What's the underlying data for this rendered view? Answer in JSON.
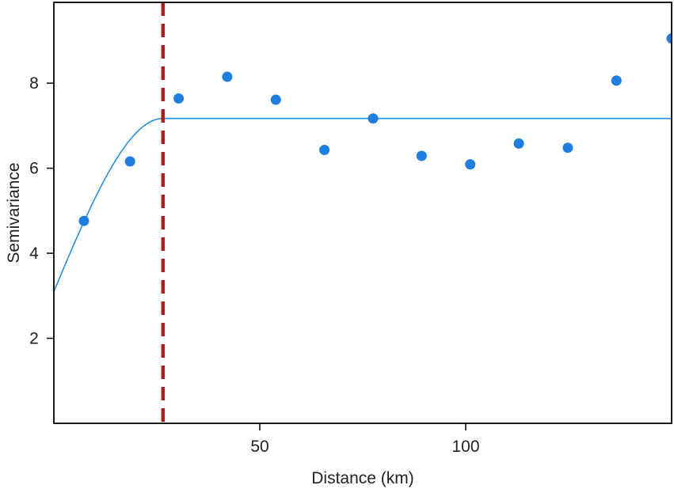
{
  "chart_data": {
    "type": "scatter",
    "xlabel": "Distance (km)",
    "ylabel": "Semivariance",
    "xlim": [
      0,
      150
    ],
    "ylim": [
      0,
      9.9
    ],
    "x_ticks": [
      50,
      100
    ],
    "y_ticks": [
      2,
      4,
      6,
      8
    ],
    "grid": false,
    "series": [
      {
        "points": [
          {
            "x": 7.3,
            "y": 4.76
          },
          {
            "x": 18.5,
            "y": 6.16
          },
          {
            "x": 30.3,
            "y": 7.64
          },
          {
            "x": 42.1,
            "y": 8.15
          },
          {
            "x": 53.9,
            "y": 7.61
          },
          {
            "x": 65.7,
            "y": 6.43
          },
          {
            "x": 77.5,
            "y": 7.17
          },
          {
            "x": 89.3,
            "y": 6.29
          },
          {
            "x": 101.1,
            "y": 6.09
          },
          {
            "x": 112.9,
            "y": 6.58
          },
          {
            "x": 124.8,
            "y": 6.48
          },
          {
            "x": 136.6,
            "y": 8.06
          },
          {
            "x": 150,
            "y": 9.05
          }
        ]
      }
    ],
    "fitted_model": {
      "type": "spherical",
      "nugget": 3.1,
      "sill": 7.17,
      "range": 26.5
    },
    "range_marker_x": 26.5,
    "colors": {
      "points": "#1f7fe0",
      "model_line": "#2a8ee0",
      "range_line": "#b41a1a",
      "axis": "#000000"
    }
  }
}
